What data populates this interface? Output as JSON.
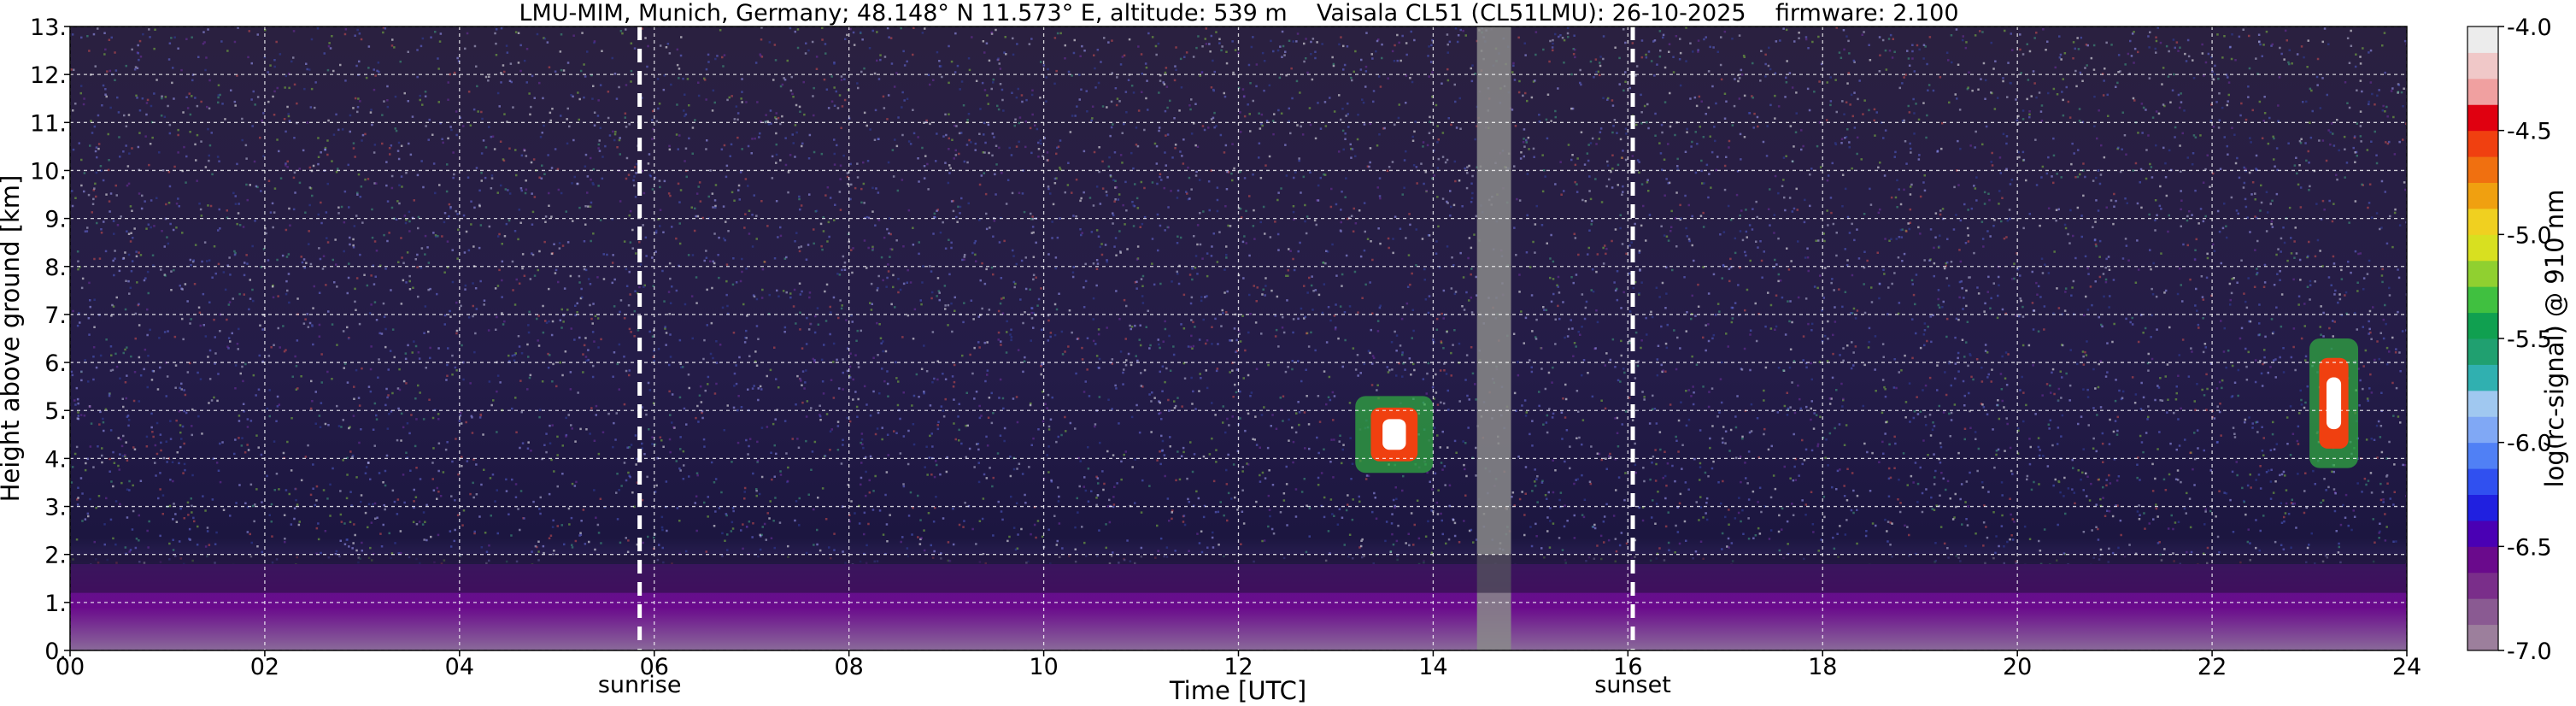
{
  "title": "LMU-MIM, Munich, Germany; 48.148° N 11.573° E, altitude: 539 m    Vaisala CL51 (CL51LMU): 26-10-2025    firmware: 2.100",
  "chart_data": {
    "type": "heatmap",
    "xlabel": "Time [UTC]",
    "ylabel": "Height above ground [km]",
    "xlim": [
      0,
      24
    ],
    "ylim": [
      0,
      13
    ],
    "x_ticks": [
      "00",
      "02",
      "04",
      "06",
      "08",
      "10",
      "12",
      "14",
      "16",
      "18",
      "20",
      "22",
      "24"
    ],
    "y_ticks": [
      "0.",
      "1.",
      "2.",
      "3.",
      "4.",
      "5.",
      "6.",
      "7.",
      "8.",
      "9.",
      "10.",
      "11.",
      "12.",
      "13."
    ],
    "grid": true,
    "sunrise": {
      "time": 5.85,
      "label": "sunrise"
    },
    "sunset": {
      "time": 16.05,
      "label": "sunset"
    },
    "colorbar": {
      "label": "log(rc-signal) @ 910 nm",
      "range": [
        -7.0,
        -4.0
      ],
      "ticks": [
        "-4.0",
        "-4.5",
        "-5.0",
        "-5.5",
        "-6.0",
        "-6.5",
        "-7.0"
      ],
      "colors": [
        "#9c7f9c",
        "#8a5a92",
        "#7a2e8a",
        "#6a0a8c",
        "#4a00b4",
        "#2020e0",
        "#3050f0",
        "#5080f5",
        "#80a8f5",
        "#a0c8f0",
        "#30b0b0",
        "#20a070",
        "#10a050",
        "#40c040",
        "#90d030",
        "#d8e020",
        "#f0d020",
        "#f0a010",
        "#f07010",
        "#f04010",
        "#e00010",
        "#f0a0a0",
        "#f0c8c8",
        "#ececec"
      ]
    },
    "features": [
      {
        "name": "instrument gap",
        "x": [
          14.45,
          14.8
        ]
      },
      {
        "name": "aerosol layer top",
        "x": [
          0,
          24
        ],
        "height_km": [
          1.2,
          2.0
        ]
      },
      {
        "name": "lofted cloud",
        "x": [
          13.2,
          14.0
        ],
        "height_km": [
          3.7,
          5.3
        ]
      },
      {
        "name": "lofted cloud",
        "x": [
          23.0,
          23.5
        ],
        "height_km": [
          3.8,
          6.5
        ]
      }
    ]
  }
}
